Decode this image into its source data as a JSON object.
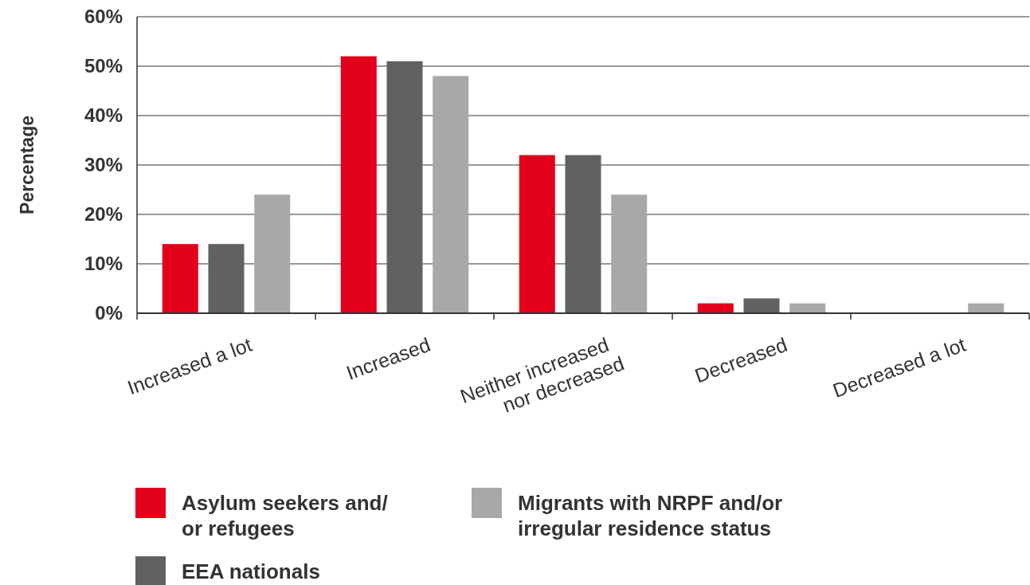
{
  "chart_data": {
    "type": "bar",
    "ylabel": "Percentage",
    "categories": [
      "Increased a lot",
      "Increased",
      "Neither increased nor decreased",
      "Decreased",
      "Decreased a lot"
    ],
    "series": [
      {
        "name": "Asylum seekers and/ or refugees",
        "color": "#e2001a",
        "values": [
          14,
          52,
          32,
          2,
          0
        ]
      },
      {
        "name": "EEA nationals",
        "color": "#616161",
        "values": [
          14,
          51,
          32,
          3,
          0
        ]
      },
      {
        "name": "Migrants with NRPF and/or irregular residence status",
        "color": "#a8a8a8",
        "values": [
          24,
          48,
          24,
          2,
          2
        ]
      }
    ],
    "ylim": [
      0,
      60
    ],
    "yticks": [
      {
        "value": 0,
        "label": "0%"
      },
      {
        "value": 10,
        "label": "10%"
      },
      {
        "value": 20,
        "label": "20%"
      },
      {
        "value": 30,
        "label": "30%"
      },
      {
        "value": 40,
        "label": "40%"
      },
      {
        "value": 50,
        "label": "50%"
      },
      {
        "value": 60,
        "label": "60%"
      }
    ],
    "grid": "y",
    "legend": "bottom"
  }
}
